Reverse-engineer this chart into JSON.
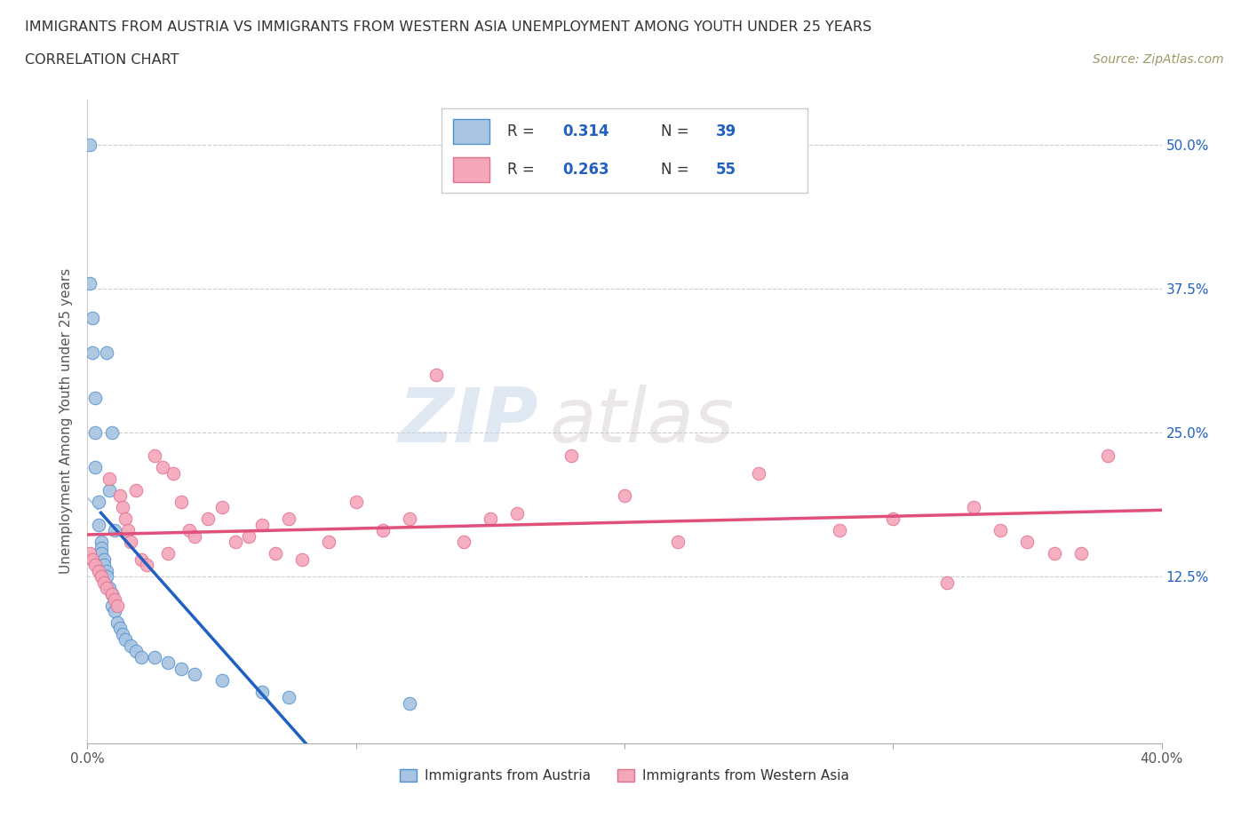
{
  "title_line1": "IMMIGRANTS FROM AUSTRIA VS IMMIGRANTS FROM WESTERN ASIA UNEMPLOYMENT AMONG YOUTH UNDER 25 YEARS",
  "title_line2": "CORRELATION CHART",
  "source_text": "Source: ZipAtlas.com",
  "ylabel": "Unemployment Among Youth under 25 years",
  "xlim": [
    0.0,
    0.4
  ],
  "ylim": [
    -0.02,
    0.54
  ],
  "r_austria": 0.314,
  "n_austria": 39,
  "r_western_asia": 0.263,
  "n_western_asia": 55,
  "color_austria": "#a8c4e0",
  "color_western_asia": "#f4a7b9",
  "color_austria_line": "#2060c0",
  "color_western_asia_line": "#e0507a",
  "color_austria_edge": "#5090d0",
  "color_western_asia_edge": "#e07090",
  "watermark_zip": "ZIP",
  "watermark_atlas": "atlas",
  "austria_x": [
    0.001,
    0.001,
    0.002,
    0.002,
    0.003,
    0.003,
    0.003,
    0.004,
    0.004,
    0.005,
    0.005,
    0.005,
    0.006,
    0.006,
    0.007,
    0.007,
    0.007,
    0.008,
    0.008,
    0.009,
    0.009,
    0.009,
    0.01,
    0.01,
    0.011,
    0.012,
    0.013,
    0.014,
    0.016,
    0.018,
    0.02,
    0.025,
    0.03,
    0.035,
    0.04,
    0.05,
    0.065,
    0.075,
    0.12
  ],
  "austria_y": [
    0.5,
    0.38,
    0.35,
    0.32,
    0.28,
    0.25,
    0.22,
    0.19,
    0.17,
    0.155,
    0.15,
    0.145,
    0.14,
    0.135,
    0.13,
    0.125,
    0.32,
    0.2,
    0.115,
    0.11,
    0.1,
    0.25,
    0.095,
    0.165,
    0.085,
    0.08,
    0.075,
    0.07,
    0.065,
    0.06,
    0.055,
    0.055,
    0.05,
    0.045,
    0.04,
    0.035,
    0.025,
    0.02,
    0.015
  ],
  "western_asia_x": [
    0.001,
    0.002,
    0.003,
    0.004,
    0.005,
    0.006,
    0.007,
    0.008,
    0.009,
    0.01,
    0.011,
    0.012,
    0.013,
    0.014,
    0.015,
    0.016,
    0.018,
    0.02,
    0.022,
    0.025,
    0.028,
    0.03,
    0.032,
    0.035,
    0.038,
    0.04,
    0.045,
    0.05,
    0.055,
    0.06,
    0.065,
    0.07,
    0.075,
    0.08,
    0.09,
    0.1,
    0.11,
    0.12,
    0.13,
    0.14,
    0.15,
    0.16,
    0.18,
    0.2,
    0.22,
    0.25,
    0.28,
    0.3,
    0.32,
    0.33,
    0.34,
    0.35,
    0.36,
    0.37,
    0.38
  ],
  "western_asia_y": [
    0.145,
    0.14,
    0.135,
    0.13,
    0.125,
    0.12,
    0.115,
    0.21,
    0.11,
    0.105,
    0.1,
    0.195,
    0.185,
    0.175,
    0.165,
    0.155,
    0.2,
    0.14,
    0.135,
    0.23,
    0.22,
    0.145,
    0.215,
    0.19,
    0.165,
    0.16,
    0.175,
    0.185,
    0.155,
    0.16,
    0.17,
    0.145,
    0.175,
    0.14,
    0.155,
    0.19,
    0.165,
    0.175,
    0.3,
    0.155,
    0.175,
    0.18,
    0.23,
    0.195,
    0.155,
    0.215,
    0.165,
    0.175,
    0.12,
    0.185,
    0.165,
    0.155,
    0.145,
    0.145,
    0.23
  ]
}
